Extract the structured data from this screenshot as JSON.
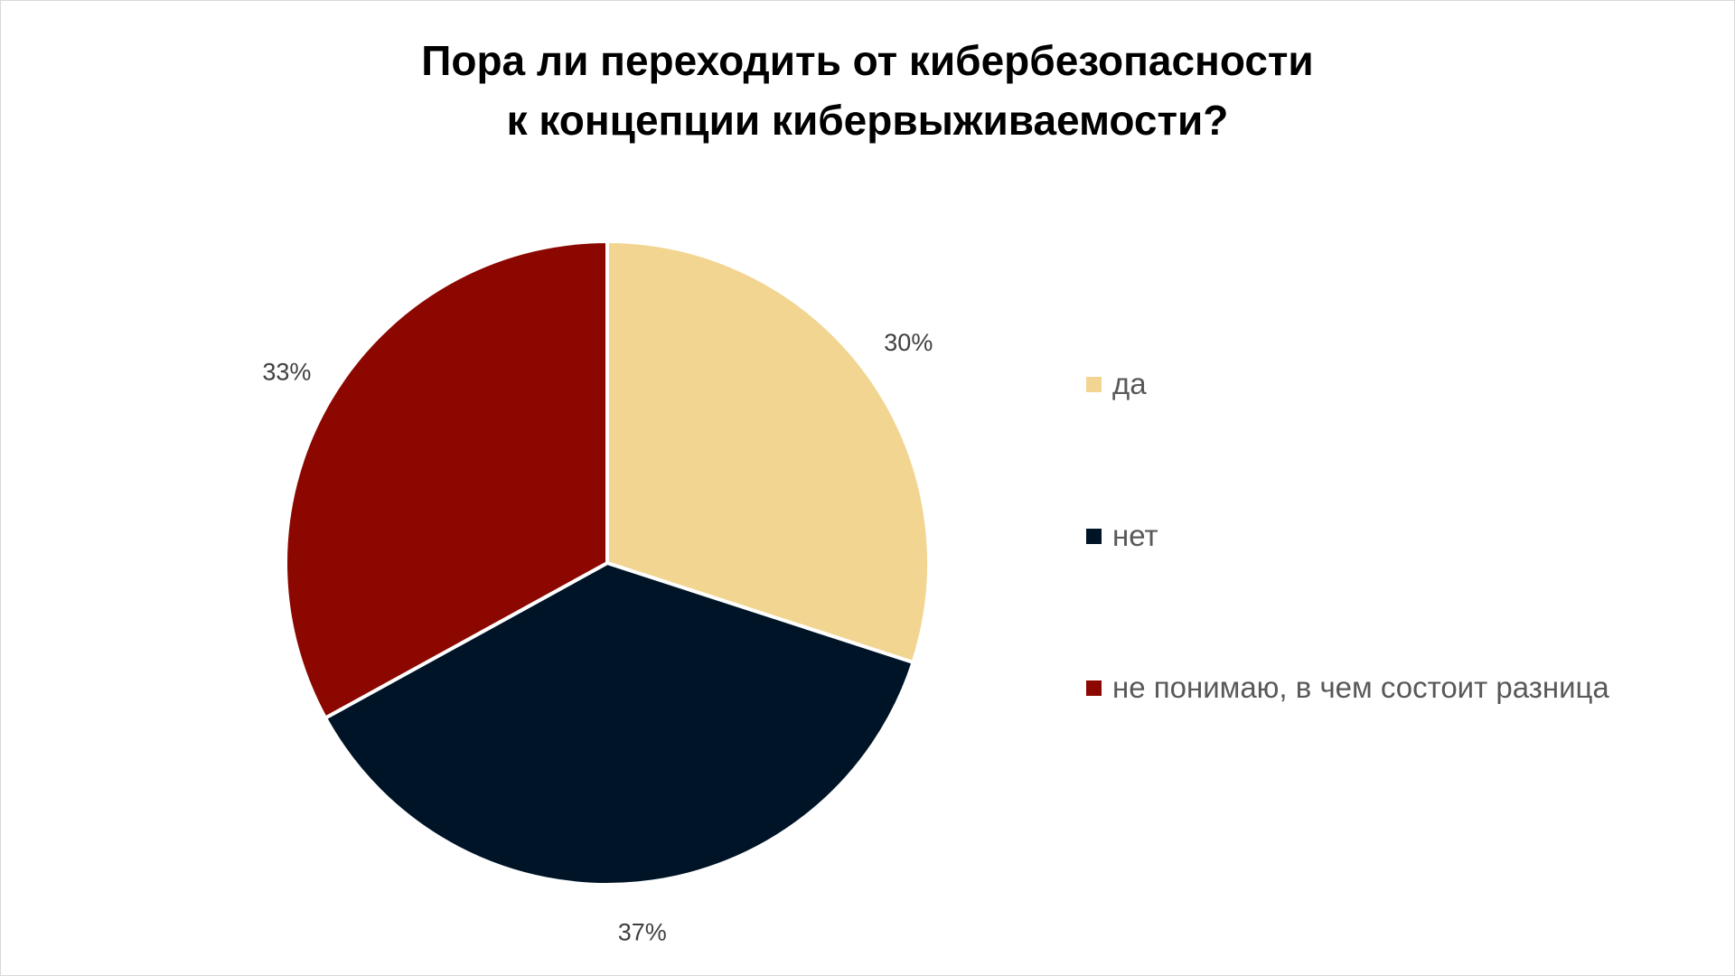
{
  "chart_data": {
    "type": "pie",
    "title": [
      "Пора ли переходить от кибербезопасности",
      "к концепции кибервыживаемости?"
    ],
    "categories": [
      "да",
      "нет",
      "не понимаю, в чем состоит разница"
    ],
    "values": [
      30,
      37,
      33
    ],
    "value_labels": [
      "30%",
      "37%",
      "33%"
    ],
    "colors": [
      "#f2d590",
      "#001427",
      "#8b0700"
    ],
    "start_angle_deg": 0,
    "direction": "clockwise",
    "legend_position": "right"
  }
}
